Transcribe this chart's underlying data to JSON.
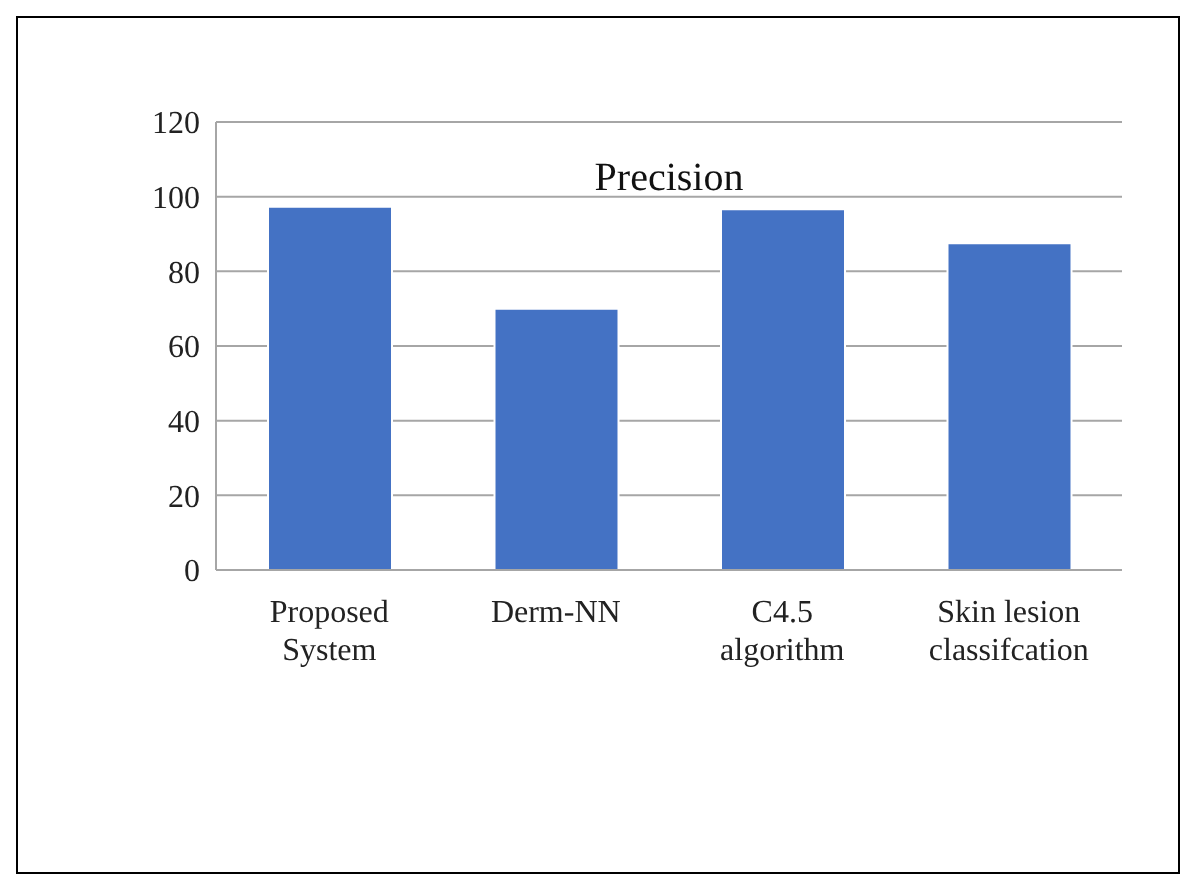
{
  "chart_data": {
    "type": "bar",
    "title": "Precision",
    "categories": [
      "Proposed System",
      "Derm-NN",
      "C4.5 algorithm",
      "Skin lesion classifcation"
    ],
    "values": [
      97.3,
      70,
      96.6,
      87.5
    ],
    "color": "#4472c4",
    "ylim": [
      0,
      120
    ],
    "yticks": [
      0,
      20,
      40,
      60,
      80,
      100,
      120
    ],
    "grid": "y"
  }
}
